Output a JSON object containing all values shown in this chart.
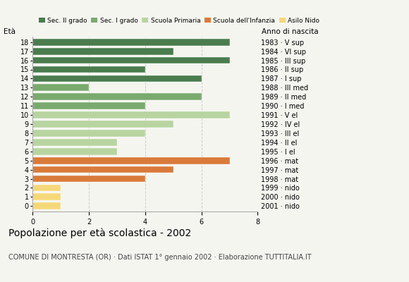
{
  "ages": [
    18,
    17,
    16,
    15,
    14,
    13,
    12,
    11,
    10,
    9,
    8,
    7,
    6,
    5,
    4,
    3,
    2,
    1,
    0
  ],
  "values": [
    7,
    5,
    7,
    4,
    6,
    2,
    6,
    4,
    7,
    5,
    4,
    3,
    3,
    7,
    5,
    4,
    1,
    1,
    1
  ],
  "right_labels": [
    "1983 · V sup",
    "1984 · VI sup",
    "1985 · III sup",
    "1986 · II sup",
    "1987 · I sup",
    "1988 · III med",
    "1989 · II med",
    "1990 · I med",
    "1991 · V el",
    "1992 · IV el",
    "1993 · III el",
    "1994 · II el",
    "1995 · I el",
    "1996 · mat",
    "1997 · mat",
    "1998 · mat",
    "1999 · nido",
    "2000 · nido",
    "2001 · nido"
  ],
  "colors": [
    "#4a7c4e",
    "#4a7c4e",
    "#4a7c4e",
    "#4a7c4e",
    "#4a7c4e",
    "#7aaa6e",
    "#7aaa6e",
    "#7aaa6e",
    "#b8d4a0",
    "#b8d4a0",
    "#b8d4a0",
    "#b8d4a0",
    "#b8d4a0",
    "#d97a3a",
    "#d97a3a",
    "#d97a3a",
    "#f5d878",
    "#f5d878",
    "#f5d878"
  ],
  "legend_labels": [
    "Sec. II grado",
    "Sec. I grado",
    "Scuola Primaria",
    "Scuola dell'Infanzia",
    "Asilo Nido"
  ],
  "legend_colors": [
    "#4a7c4e",
    "#7aaa6e",
    "#b8d4a0",
    "#d97a3a",
    "#f5d878"
  ],
  "title": "Popolazione per età scolastica - 2002",
  "subtitle": "COMUNE DI MONTRESTA (OR) · Dati ISTAT 1° gennaio 2002 · Elaborazione TUTTITALIA.IT",
  "xlabel_eta": "Età",
  "xlabel_anno": "Anno di nascita",
  "xlim": [
    0,
    8
  ],
  "xticks": [
    0,
    2,
    4,
    6,
    8
  ],
  "background_color": "#f5f5f0",
  "grid_color": "#cccccc",
  "title_fontsize": 10,
  "subtitle_fontsize": 7,
  "tick_fontsize": 7,
  "label_fontsize": 7.5,
  "legend_fontsize": 6.5
}
